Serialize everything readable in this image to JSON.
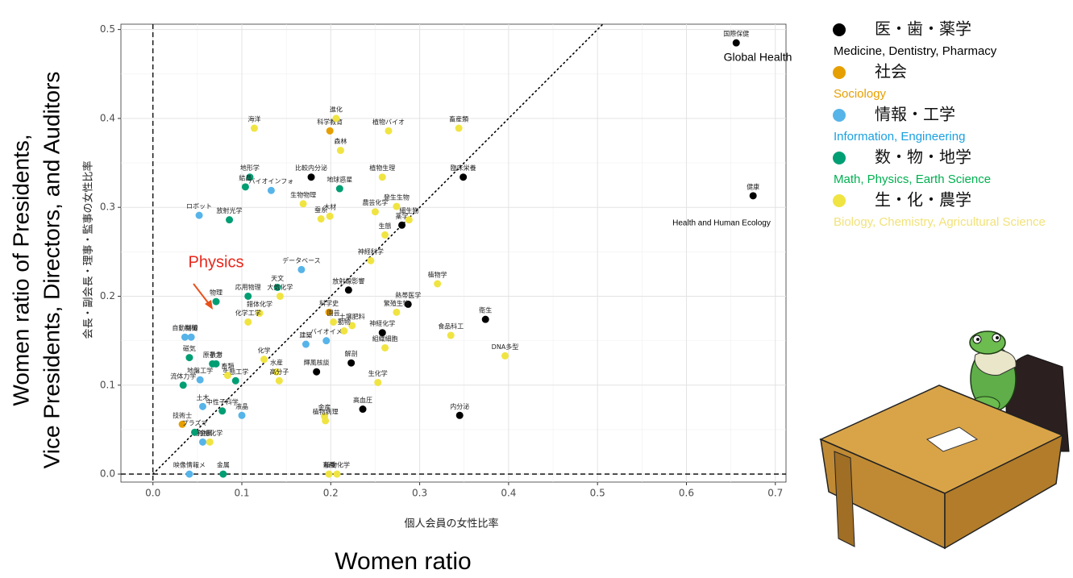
{
  "chart_data": {
    "type": "scatter",
    "x_label": "個人会員の女性比率",
    "y_label": "会長・副会長・理事・監事の女性比率",
    "x_label_en": "Women ratio",
    "y_label_en": [
      "Women ratio of Presidents,",
      "Vice Presidents, Directors, and Auditors"
    ],
    "xlim": [
      -0.036,
      0.712
    ],
    "ylim": [
      -0.009,
      0.506
    ],
    "xticks": [
      {
        "value": 0,
        "label": "0.0"
      },
      0.1,
      0.2,
      0.3,
      0.4,
      0.5,
      0.6,
      0.7
    ],
    "yticks": [
      {
        "value": 0,
        "label": "0.0"
      },
      0.1,
      0.2,
      0.3,
      0.4,
      0.5
    ],
    "grid": true,
    "annotations": [
      "Global Health",
      "Health and Human Ecology",
      "Physics"
    ],
    "series": [
      {
        "name": "医・歯・薬学",
        "name_en": "Medicine, Dentistry, Pharmacy",
        "color": "#000000",
        "text_color": "#000000",
        "x": [
          0.656,
          0.675,
          0.178,
          0.374,
          0.349,
          0.28,
          0.22,
          0.287,
          0.258,
          0.223,
          0.184,
          0.236,
          0.345
        ],
        "values": [
          0.485,
          0.313,
          0.334,
          0.174,
          0.334,
          0.28,
          0.207,
          0.191,
          0.159,
          0.125,
          0.115,
          0.073,
          0.066
        ],
        "labels": [
          "国際保健",
          "健康",
          "比較内分泌",
          "衛生",
          "臨床栄養",
          "薬学",
          "放射線影響",
          "熱帯医学",
          "神経化学",
          "解剖",
          "輝風核談",
          "高血圧",
          "内分泌"
        ]
      },
      {
        "name": "社会",
        "name_en": "Sociology",
        "color": "#E69F00",
        "text_color": "#E69F00",
        "x": [
          0.199,
          0.198,
          0.033
        ],
        "values": [
          0.386,
          0.182,
          0.056
        ],
        "labels": [
          "科学教育",
          "科学史",
          "技術士"
        ]
      },
      {
        "name": "情報・工学",
        "name_en": "Information, Engineering",
        "color": "#56B4E9",
        "text_color": "#1AA0E0",
        "x": [
          0.052,
          0.133,
          0.167,
          0.036,
          0.043,
          0.053,
          0.172,
          0.056,
          0.1,
          0.056,
          0.041,
          0.195
        ],
        "values": [
          0.291,
          0.319,
          0.23,
          0.154,
          0.154,
          0.106,
          0.146,
          0.076,
          0.066,
          0.036,
          0.0,
          0.15
        ],
        "labels": [
          "ロボット",
          "バイオインフォ",
          "データベース",
          "自動制御",
          "機械",
          "地盤工学",
          "建築",
          "土木",
          "液晶",
          "軽金属",
          "映像情報メ",
          "バイオイメ"
        ]
      },
      {
        "name": "数・物・地学",
        "name_en": "Math, Physics, Earth Science",
        "color": "#009E73",
        "text_color": "#00B050",
        "x": [
          0.109,
          0.104,
          0.086,
          0.21,
          0.14,
          0.107,
          0.071,
          0.041,
          0.067,
          0.071,
          0.034,
          0.093,
          0.078,
          0.047,
          0.079
        ],
        "values": [
          0.334,
          0.323,
          0.286,
          0.321,
          0.21,
          0.2,
          0.194,
          0.131,
          0.124,
          0.124,
          0.1,
          0.105,
          0.071,
          0.047,
          0.0
        ],
        "labels": [
          "地形学",
          "結晶",
          "放射光学",
          "地球惑星",
          "天文",
          "応用物理",
          "物理",
          "磁気",
          "原子力",
          "数学",
          "流体力学",
          "生態工学",
          "中性子科学",
          "プラズマ",
          "金属"
        ]
      },
      {
        "name": "生・化・農学",
        "name_en": "Biology, Chemistry, Agricultural Science",
        "color": "#F0E442",
        "text_color": "#F2E27A",
        "x": [
          0.206,
          0.114,
          0.265,
          0.344,
          0.211,
          0.258,
          0.169,
          0.199,
          0.189,
          0.25,
          0.274,
          0.288,
          0.261,
          0.245,
          0.32,
          0.143,
          0.12,
          0.107,
          0.203,
          0.224,
          0.215,
          0.274,
          0.335,
          0.396,
          0.261,
          0.125,
          0.139,
          0.142,
          0.253,
          0.084,
          0.193,
          0.194,
          0.064,
          0.198,
          0.207
        ],
        "values": [
          0.4,
          0.389,
          0.386,
          0.389,
          0.364,
          0.334,
          0.304,
          0.29,
          0.287,
          0.295,
          0.301,
          0.286,
          0.269,
          0.24,
          0.214,
          0.2,
          0.181,
          0.171,
          0.171,
          0.167,
          0.161,
          0.182,
          0.156,
          0.133,
          0.142,
          0.129,
          0.115,
          0.105,
          0.103,
          0.111,
          0.065,
          0.06,
          0.036,
          0.0,
          0.0
        ],
        "labels": [
          "進化",
          "海洋",
          "植物バイオ",
          "畜産類",
          "森林",
          "植物生理",
          "生物物理",
          "木材",
          "蚕糸",
          "農芸化学",
          "発生生物",
          "細生物",
          "生態",
          "神経科学",
          "植物学",
          "大気化学",
          "錯体化学",
          "化学工学",
          "園芸",
          "土壌肥料",
          "動物",
          "繁殖生物",
          "食品科工",
          "DNA多型",
          "組織細胞",
          "化学",
          "水産",
          "高分子",
          "生化学",
          "畜類",
          "金産",
          "植物病理",
          "有機化学",
          "育種",
          "植物化学"
        ]
      }
    ]
  }
}
